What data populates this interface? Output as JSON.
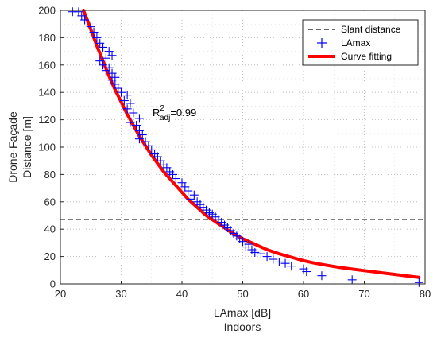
{
  "chart_data": {
    "type": "scatter",
    "xlabel": "LAmax [dB]",
    "xlabel2": "Indoors",
    "ylabel_line1": "Drone-Façade",
    "ylabel_line2": "Distance [m]",
    "xlim": [
      20,
      80
    ],
    "ylim": [
      0,
      200
    ],
    "xticks": [
      20,
      30,
      40,
      50,
      60,
      70,
      80
    ],
    "yticks": [
      0,
      20,
      40,
      60,
      80,
      100,
      120,
      140,
      160,
      180,
      200
    ],
    "grid": "dotted",
    "legend_position": "top-right",
    "annotation": {
      "base": "R",
      "sup": "2",
      "sub": "adj",
      "text": "=0.99",
      "x": 36,
      "y": 127
    },
    "series": [
      {
        "name": "Slant distance",
        "kind": "hline",
        "y": 47,
        "color": "#333333",
        "style": "dashed"
      },
      {
        "name": "LAmax",
        "kind": "scatter",
        "marker": "+",
        "color": "#0000ff",
        "points": [
          [
            22,
            199
          ],
          [
            23,
            199
          ],
          [
            23.5,
            196
          ],
          [
            24,
            193
          ],
          [
            25,
            188
          ],
          [
            25.5,
            184
          ],
          [
            26,
            180
          ],
          [
            26.5,
            176
          ],
          [
            27,
            173
          ],
          [
            28,
            170
          ],
          [
            28.5,
            167
          ],
          [
            27.5,
            165
          ],
          [
            26.5,
            163
          ],
          [
            27,
            160
          ],
          [
            28,
            158
          ],
          [
            27.5,
            156
          ],
          [
            28.5,
            154
          ],
          [
            29,
            151
          ],
          [
            28.5,
            149
          ],
          [
            29,
            146
          ],
          [
            29.5,
            143
          ],
          [
            30,
            140
          ],
          [
            31,
            138
          ],
          [
            30.5,
            134
          ],
          [
            31.5,
            132
          ],
          [
            31,
            128
          ],
          [
            32,
            125
          ],
          [
            33,
            121
          ],
          [
            31.5,
            118
          ],
          [
            32.5,
            116
          ],
          [
            33,
            112
          ],
          [
            33.5,
            109
          ],
          [
            33,
            106
          ],
          [
            34,
            104
          ],
          [
            34.5,
            101
          ],
          [
            35,
            98
          ],
          [
            35.5,
            95
          ],
          [
            36,
            93
          ],
          [
            36.5,
            90
          ],
          [
            37,
            87
          ],
          [
            37.5,
            85
          ],
          [
            38,
            82
          ],
          [
            38.5,
            80
          ],
          [
            39,
            77
          ],
          [
            40,
            74
          ],
          [
            40.5,
            71
          ],
          [
            41,
            68
          ],
          [
            42,
            65
          ],
          [
            41.5,
            62
          ],
          [
            42.5,
            60
          ],
          [
            43,
            58
          ],
          [
            43.5,
            56
          ],
          [
            44,
            54
          ],
          [
            44.5,
            52
          ],
          [
            45,
            51
          ],
          [
            45.5,
            49
          ],
          [
            46,
            47
          ],
          [
            46.5,
            45
          ],
          [
            47,
            43
          ],
          [
            47.5,
            41
          ],
          [
            48,
            39
          ],
          [
            48.5,
            37
          ],
          [
            49,
            35
          ],
          [
            49.5,
            33
          ],
          [
            50,
            31
          ],
          [
            51,
            29
          ],
          [
            50.5,
            27
          ],
          [
            51.5,
            25
          ],
          [
            52,
            23
          ],
          [
            53,
            22
          ],
          [
            54,
            20
          ],
          [
            55,
            18
          ],
          [
            56,
            16
          ],
          [
            57,
            15
          ],
          [
            58,
            13
          ],
          [
            60,
            11
          ],
          [
            60.5,
            9
          ],
          [
            63,
            6
          ],
          [
            68,
            3
          ],
          [
            79,
            1
          ]
        ]
      },
      {
        "name": "Curve fitting",
        "kind": "line",
        "color": "#ff0000",
        "points": [
          [
            23.8,
            200
          ],
          [
            25,
            186
          ],
          [
            26,
            174
          ],
          [
            27,
            163
          ],
          [
            28,
            152
          ],
          [
            29,
            142
          ],
          [
            30,
            133
          ],
          [
            31,
            124
          ],
          [
            32,
            116
          ],
          [
            33,
            108
          ],
          [
            34,
            101
          ],
          [
            35,
            94
          ],
          [
            36,
            88
          ],
          [
            37,
            82
          ],
          [
            38,
            77
          ],
          [
            39,
            72
          ],
          [
            40,
            67
          ],
          [
            41,
            62
          ],
          [
            42,
            58
          ],
          [
            43,
            54
          ],
          [
            44,
            50
          ],
          [
            45,
            47
          ],
          [
            46,
            44
          ],
          [
            47,
            41
          ],
          [
            48,
            38
          ],
          [
            50,
            33
          ],
          [
            52,
            29
          ],
          [
            54,
            25
          ],
          [
            56,
            22
          ],
          [
            58,
            19.5
          ],
          [
            60,
            17
          ],
          [
            62,
            15
          ],
          [
            64,
            13.5
          ],
          [
            66,
            12
          ],
          [
            68,
            10.8
          ],
          [
            70,
            9.7
          ],
          [
            72,
            8.6
          ],
          [
            74,
            7.5
          ],
          [
            76,
            6.4
          ],
          [
            78,
            5.3
          ],
          [
            79,
            4.8
          ]
        ]
      }
    ]
  }
}
